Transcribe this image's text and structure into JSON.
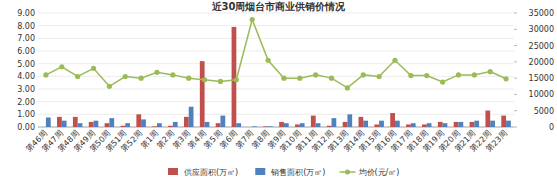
{
  "chart_data": {
    "type": "bar",
    "title": "近30周烟台市商业供销价情况",
    "categories": [
      "第46周",
      "第47周",
      "第48周",
      "第49周",
      "第50周",
      "第51周",
      "第52周",
      "第1周",
      "第2周",
      "第3周",
      "第4周",
      "第5周",
      "第6周",
      "第7周",
      "第8周",
      "第9周",
      "第10周",
      "第11周",
      "第12周",
      "第13周",
      "第14周",
      "第15周",
      "第16周",
      "第17周",
      "第18周",
      "第19周",
      "第20周",
      "第21周",
      "第22周",
      "第23周"
    ],
    "series": [
      {
        "name": "供应面积(万㎡)",
        "color": "#c0504d",
        "type": "bar",
        "values": [
          0,
          0.8,
          0.8,
          0.4,
          0.3,
          0.1,
          1.0,
          0.05,
          0.1,
          0.8,
          5.2,
          0.3,
          7.9,
          0,
          0.05,
          0.4,
          0.2,
          0.9,
          0.1,
          0.4,
          0.8,
          0.2,
          1.1,
          0.2,
          0.2,
          0.4,
          0.4,
          0.4,
          1.3,
          0.9
        ]
      },
      {
        "name": "销售面积(万㎡)",
        "color": "#4f81bd",
        "type": "bar",
        "values": [
          0.75,
          0.5,
          0.3,
          0.5,
          0.7,
          0.3,
          0.6,
          0.3,
          0.4,
          1.6,
          0.4,
          0.9,
          0.3,
          0.05,
          0.05,
          0.3,
          0.3,
          0.3,
          0.7,
          1.0,
          0.5,
          0.5,
          0.5,
          0.3,
          0.3,
          0.3,
          0.4,
          0.5,
          0.5,
          0.5
        ]
      },
      {
        "name": "均价(元/㎡)",
        "color": "#9bbb59",
        "type": "line",
        "axis": "y2",
        "marker": "circle",
        "values": [
          16000,
          18500,
          15500,
          18000,
          12500,
          15500,
          15000,
          16800,
          16000,
          15000,
          14500,
          14000,
          14500,
          33000,
          20500,
          15000,
          15000,
          16000,
          15000,
          12000,
          16000,
          15500,
          20500,
          15800,
          15800,
          13800,
          16000,
          16000,
          17000,
          14800
        ]
      }
    ],
    "ylim": [
      0,
      9
    ],
    "yticks": [
      {
        "value": 0,
        "label": "0.00"
      },
      {
        "value": 1,
        "label": "1.00"
      },
      {
        "value": 2,
        "label": "2.00"
      },
      {
        "value": 3,
        "label": "3.00"
      },
      {
        "value": 4,
        "label": "4.00"
      },
      {
        "value": 5,
        "label": "5.00"
      },
      {
        "value": 6,
        "label": "6.00"
      },
      {
        "value": 7,
        "label": "7.00"
      },
      {
        "value": 8,
        "label": "8.00"
      },
      {
        "value": 9,
        "label": "9.00"
      }
    ],
    "y2lim": [
      0,
      35000
    ],
    "y2ticks": [
      0,
      5000,
      10000,
      15000,
      20000,
      25000,
      30000,
      35000
    ],
    "grid": true,
    "legend": "bottom"
  }
}
